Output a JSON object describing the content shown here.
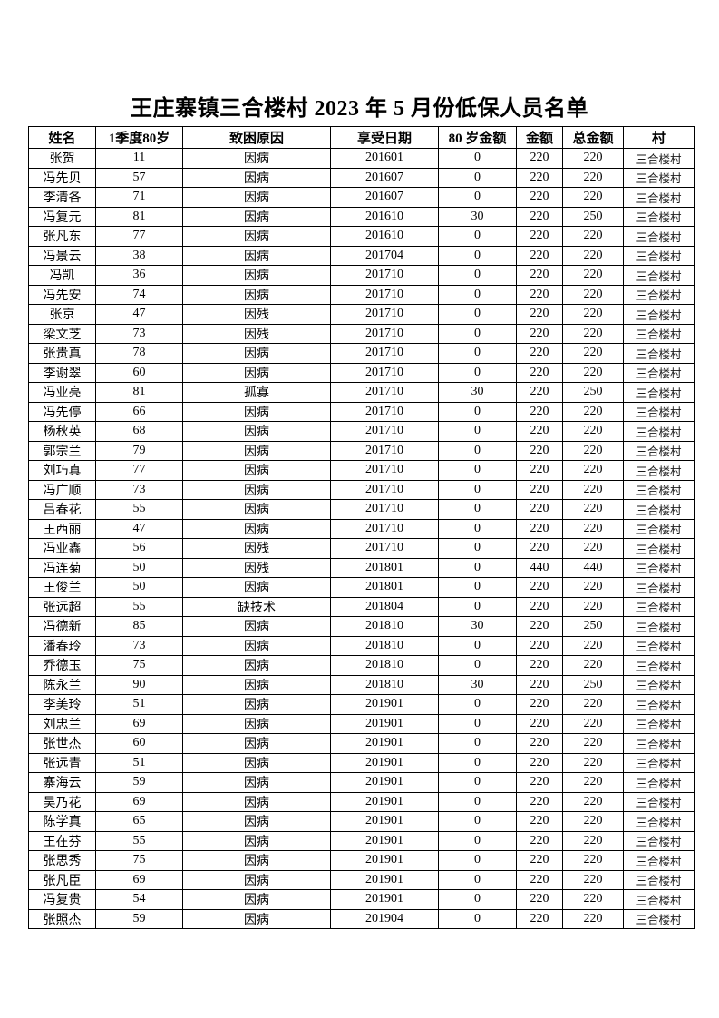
{
  "page": {
    "title": "王庄寨镇三合楼村 2023 年 5 月份低保人员名单"
  },
  "table": {
    "columns": [
      "姓名",
      "1季度80岁",
      "致困原因",
      "享受日期",
      "80 岁金额",
      "金额",
      "总金额",
      "村"
    ],
    "rows": [
      [
        "张贺",
        "11",
        "因病",
        "201601",
        "0",
        "220",
        "220",
        "三合楼村"
      ],
      [
        "冯先贝",
        "57",
        "因病",
        "201607",
        "0",
        "220",
        "220",
        "三合楼村"
      ],
      [
        "李清各",
        "71",
        "因病",
        "201607",
        "0",
        "220",
        "220",
        "三合楼村"
      ],
      [
        "冯复元",
        "81",
        "因病",
        "201610",
        "30",
        "220",
        "250",
        "三合楼村"
      ],
      [
        "张凡东",
        "77",
        "因病",
        "201610",
        "0",
        "220",
        "220",
        "三合楼村"
      ],
      [
        "冯景云",
        "38",
        "因病",
        "201704",
        "0",
        "220",
        "220",
        "三合楼村"
      ],
      [
        "冯凯",
        "36",
        "因病",
        "201710",
        "0",
        "220",
        "220",
        "三合楼村"
      ],
      [
        "冯先安",
        "74",
        "因病",
        "201710",
        "0",
        "220",
        "220",
        "三合楼村"
      ],
      [
        "张京",
        "47",
        "因残",
        "201710",
        "0",
        "220",
        "220",
        "三合楼村"
      ],
      [
        "梁文芝",
        "73",
        "因残",
        "201710",
        "0",
        "220",
        "220",
        "三合楼村"
      ],
      [
        "张贵真",
        "78",
        "因病",
        "201710",
        "0",
        "220",
        "220",
        "三合楼村"
      ],
      [
        "李谢翠",
        "60",
        "因病",
        "201710",
        "0",
        "220",
        "220",
        "三合楼村"
      ],
      [
        "冯业亮",
        "81",
        "孤寡",
        "201710",
        "30",
        "220",
        "250",
        "三合楼村"
      ],
      [
        "冯先停",
        "66",
        "因病",
        "201710",
        "0",
        "220",
        "220",
        "三合楼村"
      ],
      [
        "杨秋英",
        "68",
        "因病",
        "201710",
        "0",
        "220",
        "220",
        "三合楼村"
      ],
      [
        "郭宗兰",
        "79",
        "因病",
        "201710",
        "0",
        "220",
        "220",
        "三合楼村"
      ],
      [
        "刘巧真",
        "77",
        "因病",
        "201710",
        "0",
        "220",
        "220",
        "三合楼村"
      ],
      [
        "冯广顺",
        "73",
        "因病",
        "201710",
        "0",
        "220",
        "220",
        "三合楼村"
      ],
      [
        "吕春花",
        "55",
        "因病",
        "201710",
        "0",
        "220",
        "220",
        "三合楼村"
      ],
      [
        "王西丽",
        "47",
        "因病",
        "201710",
        "0",
        "220",
        "220",
        "三合楼村"
      ],
      [
        "冯业鑫",
        "56",
        "因残",
        "201710",
        "0",
        "220",
        "220",
        "三合楼村"
      ],
      [
        "冯连菊",
        "50",
        "因残",
        "201801",
        "0",
        "440",
        "440",
        "三合楼村"
      ],
      [
        "王俊兰",
        "50",
        "因病",
        "201801",
        "0",
        "220",
        "220",
        "三合楼村"
      ],
      [
        "张远超",
        "55",
        "缺技术",
        "201804",
        "0",
        "220",
        "220",
        "三合楼村"
      ],
      [
        "冯德新",
        "85",
        "因病",
        "201810",
        "30",
        "220",
        "250",
        "三合楼村"
      ],
      [
        "潘春玲",
        "73",
        "因病",
        "201810",
        "0",
        "220",
        "220",
        "三合楼村"
      ],
      [
        "乔德玉",
        "75",
        "因病",
        "201810",
        "0",
        "220",
        "220",
        "三合楼村"
      ],
      [
        "陈永兰",
        "90",
        "因病",
        "201810",
        "30",
        "220",
        "250",
        "三合楼村"
      ],
      [
        "李美玲",
        "51",
        "因病",
        "201901",
        "0",
        "220",
        "220",
        "三合楼村"
      ],
      [
        "刘忠兰",
        "69",
        "因病",
        "201901",
        "0",
        "220",
        "220",
        "三合楼村"
      ],
      [
        "张世杰",
        "60",
        "因病",
        "201901",
        "0",
        "220",
        "220",
        "三合楼村"
      ],
      [
        "张远青",
        "51",
        "因病",
        "201901",
        "0",
        "220",
        "220",
        "三合楼村"
      ],
      [
        "寨海云",
        "59",
        "因病",
        "201901",
        "0",
        "220",
        "220",
        "三合楼村"
      ],
      [
        "吴乃花",
        "69",
        "因病",
        "201901",
        "0",
        "220",
        "220",
        "三合楼村"
      ],
      [
        "陈学真",
        "65",
        "因病",
        "201901",
        "0",
        "220",
        "220",
        "三合楼村"
      ],
      [
        "王在芬",
        "55",
        "因病",
        "201901",
        "0",
        "220",
        "220",
        "三合楼村"
      ],
      [
        "张思秀",
        "75",
        "因病",
        "201901",
        "0",
        "220",
        "220",
        "三合楼村"
      ],
      [
        "张凡臣",
        "69",
        "因病",
        "201901",
        "0",
        "220",
        "220",
        "三合楼村"
      ],
      [
        "冯复贵",
        "54",
        "因病",
        "201901",
        "0",
        "220",
        "220",
        "三合楼村"
      ],
      [
        "张照杰",
        "59",
        "因病",
        "201904",
        "0",
        "220",
        "220",
        "三合楼村"
      ]
    ]
  }
}
